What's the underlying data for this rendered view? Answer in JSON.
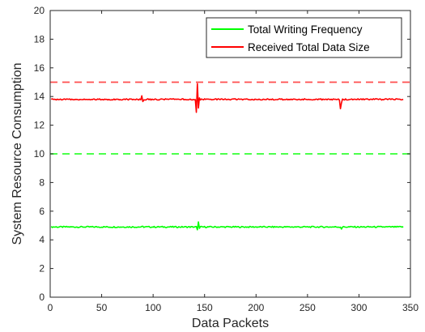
{
  "chart_data": {
    "type": "line",
    "title": "",
    "xlabel": "Data Packets",
    "ylabel": "System Resource Consumption",
    "xlim": [
      0,
      350
    ],
    "ylim": [
      0,
      20
    ],
    "xticks": [
      0,
      50,
      100,
      150,
      200,
      250,
      300,
      350
    ],
    "yticks": [
      0,
      2,
      4,
      6,
      8,
      10,
      12,
      14,
      16,
      18,
      20
    ],
    "grid": false,
    "legend_position": "top-right",
    "series": [
      {
        "name": "Total Writing Frequency",
        "color": "#00ff00",
        "style": "solid",
        "x_start": 1,
        "x_end": 343,
        "baseline": 4.9,
        "spikes": [
          {
            "x": 90,
            "y": 4.95
          },
          {
            "x": 143,
            "y": 4.7
          },
          {
            "x": 144,
            "y": 5.25
          },
          {
            "x": 145,
            "y": 4.8
          },
          {
            "x": 283,
            "y": 4.75
          }
        ]
      },
      {
        "name": "Received Total Data Size",
        "color": "#ff0000",
        "style": "solid",
        "x_start": 1,
        "x_end": 343,
        "baseline": 13.8,
        "spikes": [
          {
            "x": 89,
            "y": 14.05
          },
          {
            "x": 90,
            "y": 13.65
          },
          {
            "x": 142,
            "y": 12.9
          },
          {
            "x": 143,
            "y": 14.9
          },
          {
            "x": 144,
            "y": 13.2
          },
          {
            "x": 145,
            "y": 13.9
          },
          {
            "x": 282,
            "y": 13.15
          },
          {
            "x": 283,
            "y": 13.55
          }
        ]
      }
    ],
    "reference_lines": [
      {
        "y": 15,
        "color": "#ff4d4d",
        "style": "dashed"
      },
      {
        "y": 10,
        "color": "#33ff33",
        "style": "dashed"
      }
    ]
  }
}
